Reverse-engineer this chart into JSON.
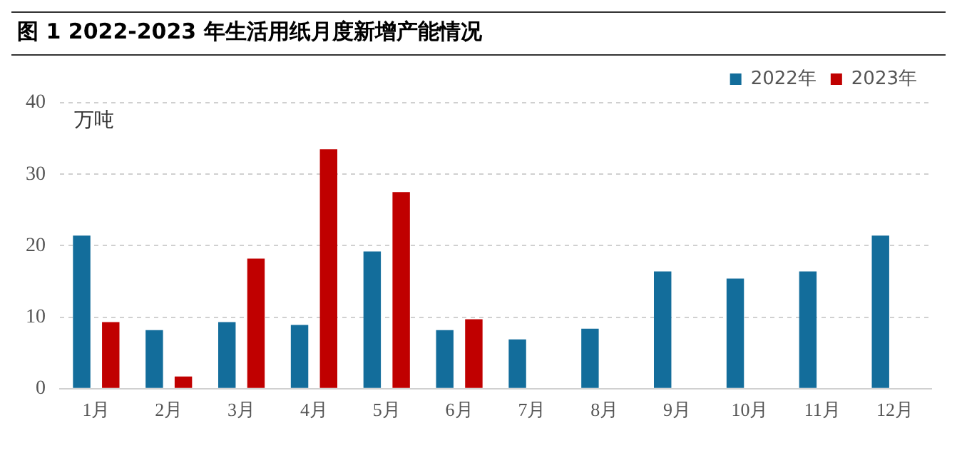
{
  "chart_data": {
    "type": "bar",
    "title": "图 1 2022-2023 年生活用纸月度新增产能情况",
    "ylabel": "万吨",
    "categories": [
      "1月",
      "2月",
      "3月",
      "4月",
      "5月",
      "6月",
      "7月",
      "8月",
      "9月",
      "10月",
      "11月",
      "12月"
    ],
    "series": [
      {
        "name": "2022年",
        "color": "#136d9b",
        "values": [
          21.4,
          8.2,
          9.3,
          8.9,
          19.2,
          8.2,
          6.9,
          8.4,
          16.4,
          15.4,
          16.4,
          21.4
        ]
      },
      {
        "name": "2023年",
        "color": "#c00000",
        "values": [
          9.3,
          1.7,
          18.2,
          33.5,
          27.5,
          9.7,
          null,
          null,
          null,
          null,
          null,
          null
        ]
      }
    ],
    "ylim": [
      0,
      40
    ],
    "yticks": [
      0,
      10,
      20,
      30,
      40
    ],
    "grid": "y",
    "legend": "top right"
  }
}
